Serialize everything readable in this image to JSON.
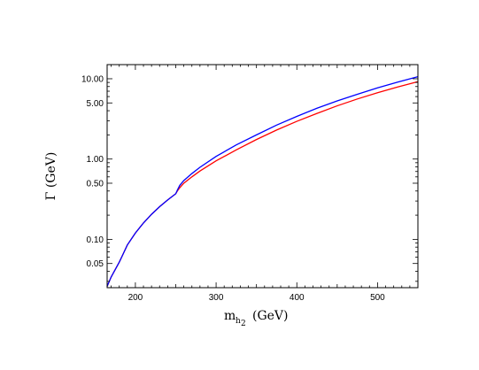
{
  "chart_data": {
    "type": "line",
    "title": "",
    "xlabel": "m",
    "xlabel_sub": "h",
    "xlabel_subsub": "2",
    "xlabel_unit": "(GeV)",
    "ylabel": "Γ (GeV)",
    "xscale": "linear",
    "yscale": "log",
    "xlim": [
      165,
      550
    ],
    "ylim": [
      0.025,
      15
    ],
    "xticks": [
      200,
      300,
      400,
      500
    ],
    "xtick_labels": [
      "200",
      "300",
      "400",
      "500"
    ],
    "yticks": [
      0.05,
      0.1,
      0.5,
      1.0,
      5.0,
      10.0
    ],
    "ytick_labels": [
      "0.05",
      "0.10",
      "0.50",
      "1.00",
      "5.00",
      "10.00"
    ],
    "grid": false,
    "legend": "none",
    "series": [
      {
        "color": "#ff0000",
        "x": [
          165,
          170,
          175,
          180,
          183,
          190,
          200,
          210,
          220,
          230,
          240,
          250,
          252,
          255,
          260,
          270,
          280,
          300,
          325,
          350,
          375,
          400,
          425,
          450,
          475,
          500,
          525,
          550
        ],
        "y": [
          0.026,
          0.034,
          0.042,
          0.052,
          0.06,
          0.085,
          0.12,
          0.16,
          0.205,
          0.255,
          0.31,
          0.37,
          0.4,
          0.44,
          0.5,
          0.6,
          0.71,
          0.95,
          1.3,
          1.75,
          2.3,
          2.95,
          3.7,
          4.6,
          5.6,
          6.7,
          7.9,
          9.2
        ]
      },
      {
        "color": "#0000ff",
        "x": [
          165,
          170,
          175,
          180,
          183,
          190,
          200,
          210,
          220,
          230,
          240,
          250,
          252,
          255,
          260,
          270,
          280,
          300,
          325,
          350,
          375,
          400,
          425,
          450,
          475,
          500,
          525,
          550
        ],
        "y": [
          0.026,
          0.034,
          0.042,
          0.052,
          0.06,
          0.085,
          0.12,
          0.16,
          0.205,
          0.255,
          0.31,
          0.37,
          0.41,
          0.47,
          0.54,
          0.66,
          0.79,
          1.08,
          1.5,
          2.0,
          2.65,
          3.4,
          4.3,
          5.3,
          6.4,
          7.7,
          9.1,
          10.6
        ]
      }
    ]
  }
}
